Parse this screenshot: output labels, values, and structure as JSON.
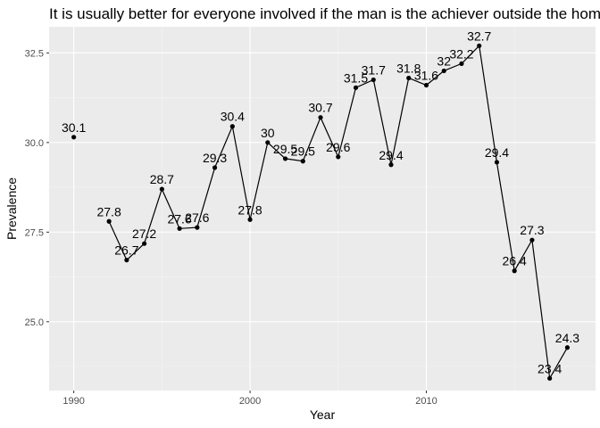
{
  "chart_data": {
    "type": "line",
    "title": "It is usually better for everyone involved if the man is the achiever outside the home",
    "xlabel": "Year",
    "ylabel": "Prevalence",
    "xlim": [
      1988.6,
      2019.6
    ],
    "ylim": [
      23.08,
      33.23
    ],
    "x_ticks": [
      1990,
      2000,
      2010
    ],
    "y_ticks": [
      25.0,
      27.5,
      30.0,
      32.5
    ],
    "x_tick_labels": [
      "1990",
      "2000",
      "2010"
    ],
    "y_tick_labels": [
      "25.0",
      "27.5",
      "30.0",
      "32.5"
    ],
    "grid": true,
    "legend": "none",
    "series": [
      {
        "x": [
          1990,
          1992,
          1993,
          1994,
          1995,
          1996,
          1997,
          1998,
          1999,
          2000,
          2001,
          2002,
          2003,
          2004,
          2005,
          2006,
          2007,
          2008,
          2009,
          2010,
          2011,
          2012,
          2013,
          2014,
          2015,
          2016,
          2017,
          2018
        ],
        "values": [
          30.1,
          27.8,
          26.7,
          27.2,
          28.7,
          27.6,
          27.6,
          29.3,
          30.4,
          27.8,
          30,
          29.5,
          29.5,
          30.7,
          29.6,
          31.5,
          31.7,
          29.4,
          31.8,
          31.6,
          32,
          32.2,
          32.7,
          29.4,
          26.4,
          27.3,
          23.4,
          24.3
        ],
        "labels": [
          "30.1",
          "27.8",
          "26.7",
          "27.2",
          "28.7",
          "27.6",
          "27.6",
          "29.3",
          "30.4",
          "27.8",
          "30",
          "29.5",
          "29.5",
          "30.7",
          "29.6",
          "31.5",
          "31.7",
          "29.4",
          "31.8",
          "31.6",
          "32",
          "32.2",
          "32.7",
          "29.4",
          "26.4",
          "27.3",
          "23.4",
          "24.3"
        ],
        "true_values": [
          30.15,
          27.8,
          26.72,
          27.18,
          28.7,
          27.6,
          27.63,
          29.3,
          30.45,
          27.85,
          30.0,
          29.55,
          29.48,
          30.7,
          29.6,
          31.53,
          31.75,
          29.38,
          31.8,
          31.6,
          32.0,
          32.2,
          32.7,
          29.45,
          26.42,
          27.28,
          23.42,
          24.28
        ],
        "color": "#000000"
      }
    ],
    "colors": {
      "panel": "#ebebeb",
      "grid_major": "#ffffff",
      "grid_minor": "#f5f5f5",
      "line": "#000000"
    }
  }
}
